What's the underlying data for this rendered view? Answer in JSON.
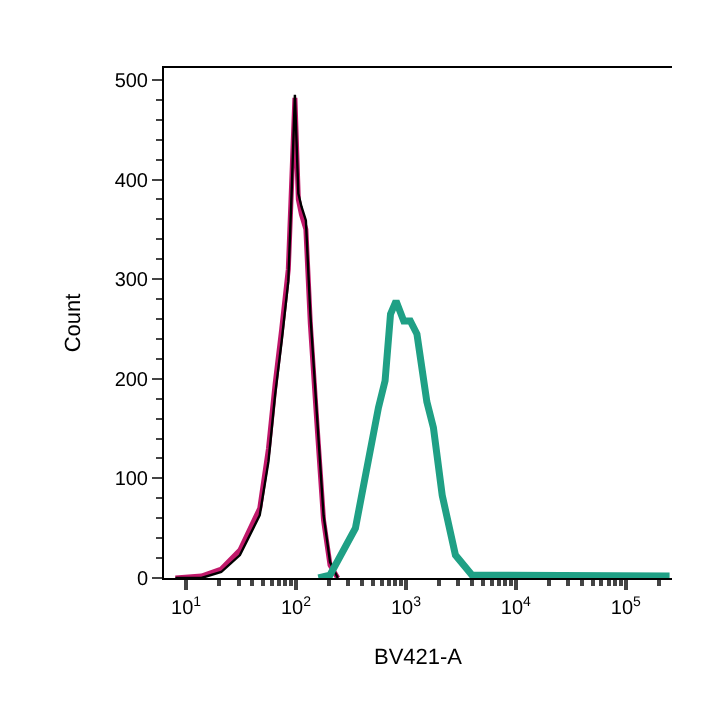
{
  "chart_data": {
    "type": "line",
    "xlabel": "BV421-A",
    "ylabel": "Count",
    "log": "x",
    "xlim": [
      6.3,
      263000
    ],
    "xticks": [
      {
        "value": 10,
        "label": "10$^{1}$"
      },
      {
        "value": 100,
        "label": "10$^{2}$"
      },
      {
        "value": 1000,
        "label": "10$^{3}$"
      },
      {
        "value": 10000,
        "label": "10$^{4}$"
      },
      {
        "value": 100000,
        "label": "10$^{5}$"
      }
    ],
    "ylim": [
      0,
      512
    ],
    "yticks": [
      0,
      100,
      200,
      300,
      400,
      500
    ],
    "marker": "none",
    "line_style": "solid",
    "series": [
      {
        "color": "#c0186a",
        "x": [
          8,
          13.8,
          20.9,
          30.9,
          46.8,
          56.2,
          64.6,
          74.1,
          85.1,
          91.2,
          97.7,
          105,
          112,
          123,
          135,
          155,
          178,
          204,
          240
        ],
        "values": [
          0,
          2,
          9,
          28,
          70,
          130,
          195,
          250,
          310,
          395,
          482,
          380,
          365,
          350,
          255,
          155,
          58,
          13,
          0
        ]
      },
      {
        "color": "#000000",
        "x": [
          8,
          13.8,
          20.9,
          30.9,
          46.8,
          56.2,
          64.6,
          74.1,
          85.1,
          91.2,
          97.7,
          105,
          112,
          123,
          135,
          155,
          178,
          204,
          240
        ],
        "values": [
          0,
          0,
          6,
          23,
          63,
          117,
          184,
          238,
          298,
          386,
          485,
          386,
          373,
          359,
          265,
          164,
          63,
          16,
          0
        ]
      },
      {
        "color": "#1fa085",
        "x": [
          160,
          204,
          347,
          562,
          646,
          724,
          813,
          955,
          1096,
          1259,
          1549,
          1778,
          2138,
          2818,
          3981,
          250000
        ],
        "values": [
          0,
          3,
          50,
          171,
          198,
          265,
          278,
          258,
          258,
          245,
          177,
          151,
          83,
          23,
          3,
          2
        ]
      }
    ]
  }
}
